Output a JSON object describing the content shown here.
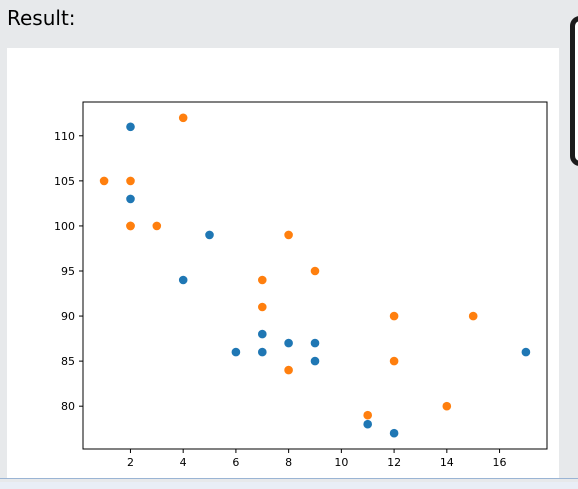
{
  "header": {
    "label": "Result:"
  },
  "chart_data": {
    "type": "scatter",
    "xlim": [
      0.2,
      17.8
    ],
    "ylim": [
      75.25,
      113.75
    ],
    "xticks": [
      2,
      4,
      6,
      8,
      10,
      12,
      14,
      16
    ],
    "yticks": [
      80,
      85,
      90,
      95,
      100,
      105,
      110
    ],
    "grid": false,
    "series": [
      {
        "color": "#1f77b4",
        "points": [
          [
            5,
            99
          ],
          [
            7,
            86
          ],
          [
            8,
            87
          ],
          [
            7,
            88
          ],
          [
            2,
            111
          ],
          [
            17,
            86
          ],
          [
            2,
            103
          ],
          [
            9,
            87
          ],
          [
            4,
            94
          ],
          [
            11,
            78
          ],
          [
            12,
            77
          ],
          [
            9,
            85
          ],
          [
            6,
            86
          ]
        ]
      },
      {
        "color": "#ff7f0e",
        "points": [
          [
            2,
            100
          ],
          [
            2,
            105
          ],
          [
            8,
            84
          ],
          [
            1,
            105
          ],
          [
            15,
            90
          ],
          [
            8,
            99
          ],
          [
            12,
            90
          ],
          [
            9,
            95
          ],
          [
            4,
            112
          ],
          [
            14,
            80
          ],
          [
            7,
            91
          ],
          [
            11,
            79
          ],
          [
            12,
            85
          ],
          [
            2,
            100
          ],
          [
            7,
            94
          ],
          [
            3,
            100
          ]
        ]
      }
    ]
  }
}
